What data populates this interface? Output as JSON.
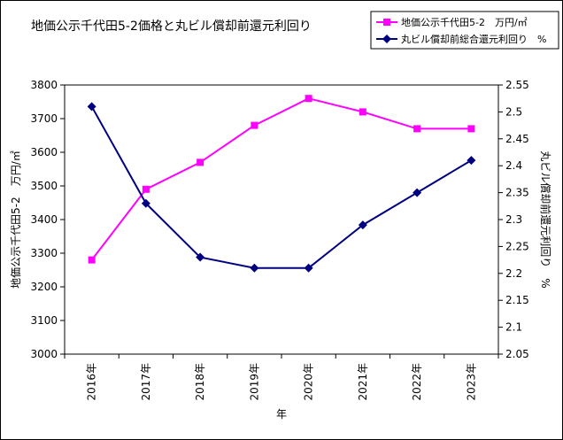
{
  "chart_data": {
    "type": "line",
    "title": "地価公示千代田5-2価格と丸ビル償却前還元利回り",
    "xlabel": "年",
    "ylabel_left": "地価公示千代田5-2　万円/㎡",
    "ylabel_right": "丸ビル償却前還元利回り　%",
    "categories": [
      "2016年",
      "2017年",
      "2018年",
      "2019年",
      "2020年",
      "2021年",
      "2022年",
      "2023年"
    ],
    "y_left": {
      "min": 3000,
      "max": 3800,
      "step": 100,
      "ticks": [
        "3000",
        "3100",
        "3200",
        "3300",
        "3400",
        "3500",
        "3600",
        "3700",
        "3800"
      ]
    },
    "y_right": {
      "min": 2.05,
      "max": 2.55,
      "step": 0.05,
      "ticks": [
        "2.05",
        "2.1",
        "2.15",
        "2.2",
        "2.25",
        "2.3",
        "2.35",
        "2.4",
        "2.45",
        "2.5",
        "2.55"
      ]
    },
    "series": [
      {
        "name": "地価公示千代田5-2　万円/㎡",
        "axis": "left",
        "color": "#ff00ff",
        "marker": "square",
        "values": [
          3280,
          3490,
          3570,
          3680,
          3760,
          3720,
          3670,
          3670
        ]
      },
      {
        "name": "丸ビル償却前総合還元利回り　%",
        "axis": "right",
        "color": "#000080",
        "marker": "diamond",
        "values": [
          2.51,
          2.33,
          2.23,
          2.21,
          2.21,
          2.29,
          2.35,
          2.41
        ]
      }
    ],
    "grid": false,
    "legend_position": "top-right"
  }
}
